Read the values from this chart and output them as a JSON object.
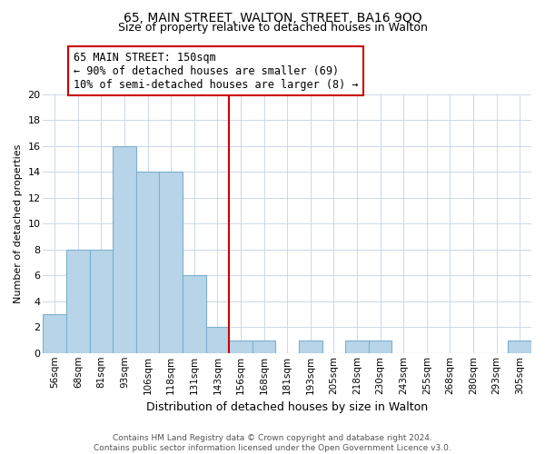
{
  "title": "65, MAIN STREET, WALTON, STREET, BA16 9QQ",
  "subtitle": "Size of property relative to detached houses in Walton",
  "xlabel": "Distribution of detached houses by size in Walton",
  "ylabel": "Number of detached properties",
  "bin_labels": [
    "56sqm",
    "68sqm",
    "81sqm",
    "93sqm",
    "106sqm",
    "118sqm",
    "131sqm",
    "143sqm",
    "156sqm",
    "168sqm",
    "181sqm",
    "193sqm",
    "205sqm",
    "218sqm",
    "230sqm",
    "243sqm",
    "255sqm",
    "268sqm",
    "280sqm",
    "293sqm",
    "305sqm"
  ],
  "bar_heights": [
    3,
    8,
    8,
    16,
    14,
    14,
    6,
    2,
    1,
    1,
    0,
    1,
    0,
    1,
    1,
    0,
    0,
    0,
    0,
    0,
    1
  ],
  "bar_color": "#b8d4e8",
  "bar_edge_color": "#7ab0d0",
  "vline_color": "#cc0000",
  "annotation_line1": "65 MAIN STREET: 150sqm",
  "annotation_line2": "← 90% of detached houses are smaller (69)",
  "annotation_line3": "10% of semi-detached houses are larger (8) →",
  "annotation_box_color": "#ffffff",
  "annotation_box_edge_color": "#cc0000",
  "ylim": [
    0,
    20
  ],
  "yticks": [
    0,
    2,
    4,
    6,
    8,
    10,
    12,
    14,
    16,
    18,
    20
  ],
  "footnote": "Contains HM Land Registry data © Crown copyright and database right 2024.\nContains public sector information licensed under the Open Government Licence v3.0.",
  "bg_color": "#ffffff",
  "grid_color": "#ccd8e8",
  "title_fontsize": 10,
  "subtitle_fontsize": 9,
  "ylabel_fontsize": 8,
  "xlabel_fontsize": 9
}
